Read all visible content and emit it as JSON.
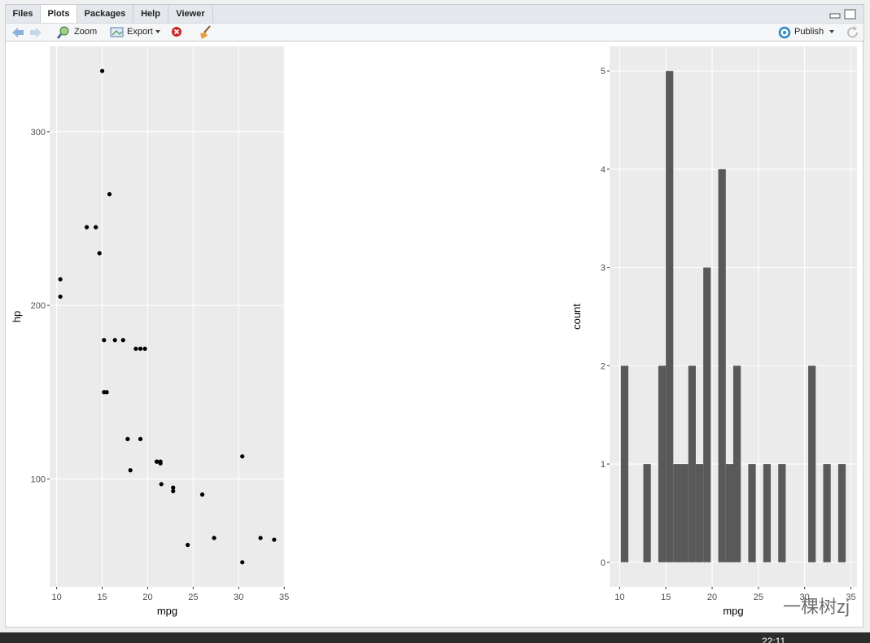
{
  "tabs": [
    "Files",
    "Plots",
    "Packages",
    "Help",
    "Viewer"
  ],
  "toolbar": {
    "zoom": "Zoom",
    "export": "Export",
    "publish": "Publish"
  },
  "watermark": "一棵树zj",
  "clock": "22:11",
  "chart_data": [
    {
      "type": "scatter",
      "x_label": "mpg",
      "y_label": "hp",
      "x": [
        21.0,
        21.0,
        22.8,
        21.4,
        18.7,
        18.1,
        14.3,
        24.4,
        22.8,
        19.2,
        17.8,
        16.4,
        17.3,
        15.2,
        10.4,
        10.4,
        14.7,
        32.4,
        30.4,
        33.9,
        21.5,
        15.5,
        15.2,
        13.3,
        19.2,
        27.3,
        26.0,
        30.4,
        15.8,
        19.7,
        15.0,
        21.4
      ],
      "values": [
        110,
        110,
        93,
        110,
        175,
        105,
        245,
        62,
        95,
        123,
        123,
        180,
        180,
        180,
        205,
        215,
        230,
        66,
        52,
        65,
        97,
        150,
        150,
        245,
        175,
        66,
        91,
        113,
        264,
        175,
        335,
        109
      ],
      "color": "#000000",
      "xlim": [
        9.225,
        35.075
      ],
      "ylim": [
        37.85,
        349.15
      ],
      "xticks": [
        10,
        15,
        20,
        25,
        30,
        35
      ],
      "yticks": [
        100,
        200,
        300
      ],
      "grid": true
    },
    {
      "type": "histogram",
      "x_label": "mpg",
      "y_label": "count",
      "bins": [
        10.1293,
        10.9396,
        11.75,
        12.5603,
        13.3707,
        14.181,
        14.9914,
        15.8017,
        16.6121,
        17.4224,
        18.2328,
        19.0431,
        19.8534,
        20.6638,
        21.4741,
        22.2845,
        23.0948,
        23.9052,
        24.7155,
        25.5259,
        26.3362,
        27.1466,
        27.9569,
        28.7672,
        29.5776,
        30.3879,
        31.1983,
        32.0086,
        32.819,
        33.6293,
        34.4397
      ],
      "values": [
        2,
        0,
        0,
        1,
        0,
        2,
        5,
        1,
        1,
        2,
        1,
        3,
        0,
        4,
        1,
        2,
        0,
        1,
        0,
        1,
        0,
        1,
        0,
        0,
        0,
        2,
        0,
        1,
        0,
        1
      ],
      "color": "#595959",
      "xlim": [
        8.91,
        35.66
      ],
      "ylim": [
        -0.25,
        5.25
      ],
      "xticks": [
        10,
        15,
        20,
        25,
        30,
        35
      ],
      "yticks": [
        0,
        1,
        2,
        3,
        4,
        5
      ],
      "grid": true
    }
  ]
}
